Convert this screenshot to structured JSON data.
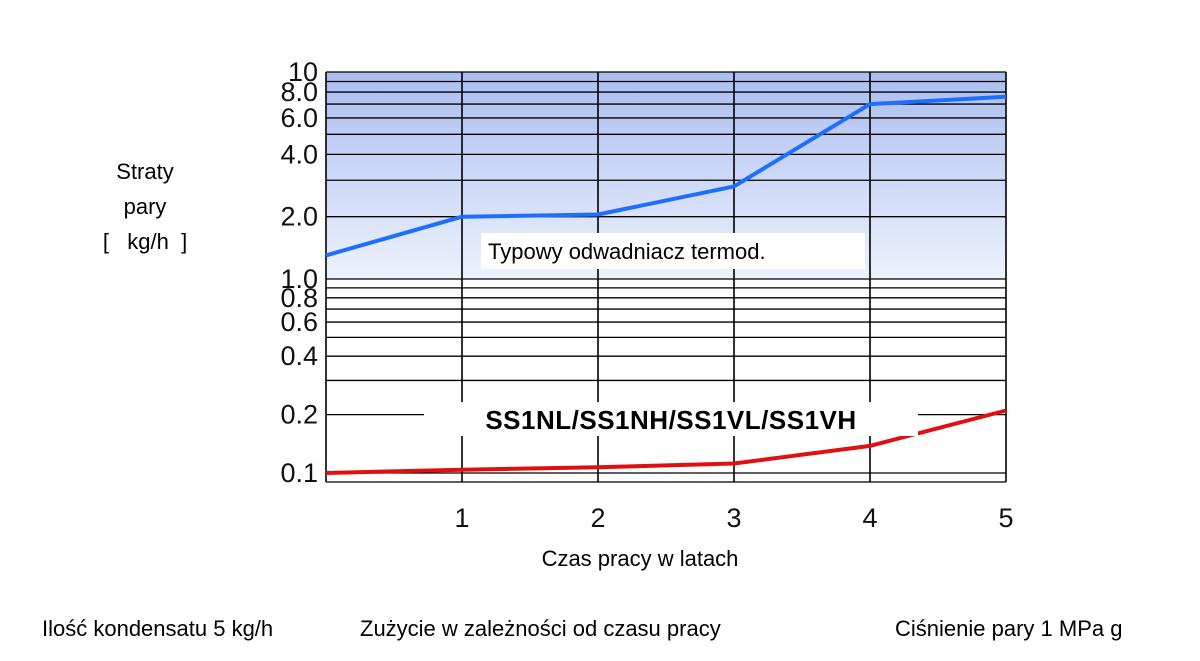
{
  "chart_data": {
    "type": "line",
    "title": "",
    "xlabel": "Czas pracy w latach",
    "ylabel_lines": [
      "Straty",
      "pary",
      "[   kg/h  ]"
    ],
    "x": [
      0,
      1,
      2,
      3,
      4,
      5
    ],
    "x_tick_labels": [
      "1",
      "2",
      "3",
      "4",
      "5"
    ],
    "x_tick_values": [
      1,
      2,
      3,
      4,
      5
    ],
    "xlim": [
      0,
      5
    ],
    "y_scale": "log",
    "ylim": [
      0.09,
      10
    ],
    "y_tick_labels": [
      "10",
      "8.0",
      "6.0",
      "4.0",
      "2.0",
      "1.0",
      "0.8",
      "0.6",
      "0.4",
      "0.2",
      "0.1"
    ],
    "y_tick_values": [
      10,
      8,
      6,
      4,
      2,
      1,
      0.8,
      0.6,
      0.4,
      0.2,
      0.1
    ],
    "grid": true,
    "series": [
      {
        "name": "Typowy odwadniacz termod.",
        "color": "#1f6fff",
        "values": [
          1.3,
          2.0,
          2.05,
          2.8,
          7.0,
          7.6
        ]
      },
      {
        "name": "SS1NL/SS1NH/SS1VL/SS1VH",
        "color": "#e01010",
        "values": [
          0.1,
          0.104,
          0.107,
          0.112,
          0.138,
          0.21
        ]
      }
    ]
  },
  "footer": {
    "left": "Ilość kondensatu 5 kg/h",
    "center": "Zużycie w zależności od czasu pracy",
    "right": "Ciśnienie pary 1 MPa g"
  },
  "colors": {
    "plot_fill_top": "#b7c8f2",
    "plot_fill_bottom": "#ffffff",
    "grid": "#000000"
  }
}
